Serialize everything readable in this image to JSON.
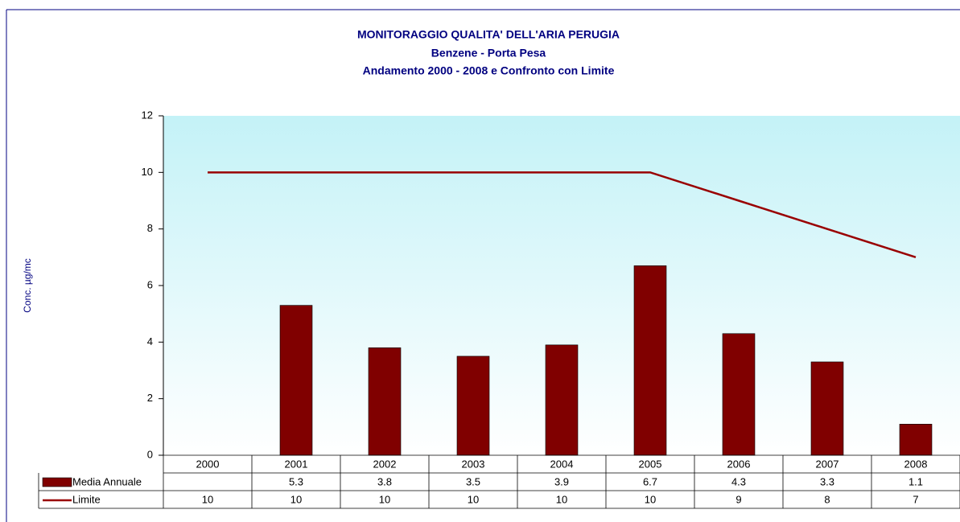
{
  "chart_data": {
    "type": "bar",
    "title": "MONITORAGGIO QUALITA' DELL'ARIA  PERUGIA",
    "subtitle": [
      "Benzene - Porta Pesa",
      "Andamento 2000 - 2008 e Confronto con Limite"
    ],
    "y_label": "Conc. µg/mc",
    "categories": [
      "2000",
      "2001",
      "2002",
      "2003",
      "2004",
      "2005",
      "2006",
      "2007",
      "2008"
    ],
    "series": [
      {
        "name": "Media Annuale",
        "type": "bar",
        "color": "#800000",
        "values": [
          null,
          5.3,
          3.8,
          3.5,
          3.9,
          6.7,
          4.3,
          3.3,
          1.1
        ]
      },
      {
        "name": "Limite",
        "type": "line",
        "color": "#990000",
        "values": [
          10,
          10,
          10,
          10,
          10,
          10,
          9,
          8,
          7
        ]
      }
    ],
    "ylim": [
      0,
      12
    ],
    "yticks": [
      0,
      2,
      4,
      6,
      8,
      10,
      12
    ],
    "grid": false,
    "data_table": true
  }
}
